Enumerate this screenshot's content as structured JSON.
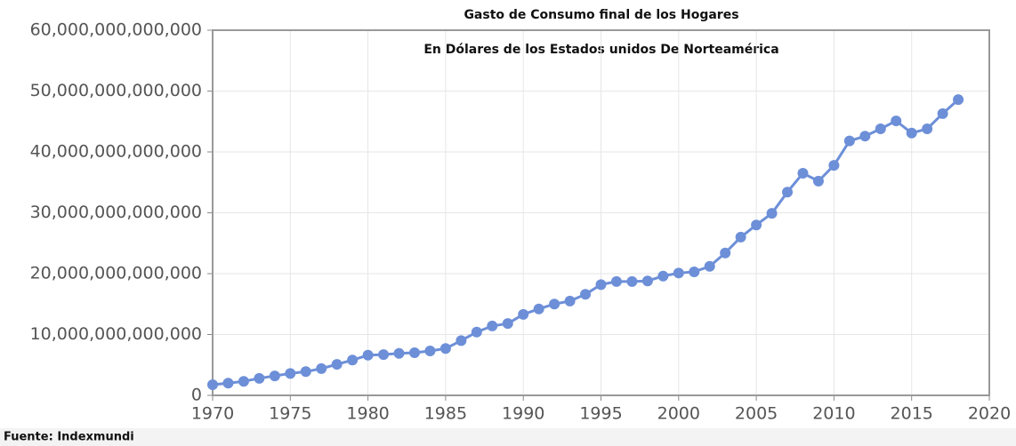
{
  "chart_data": {
    "type": "line",
    "title": "Gasto de Consumo final de los Hogares",
    "subtitle": "En Dólares de los Estados unidos De Norteamérica",
    "source": "Fuente: Indexmundi",
    "x": [
      1970,
      1971,
      1972,
      1973,
      1974,
      1975,
      1976,
      1977,
      1978,
      1979,
      1980,
      1981,
      1982,
      1983,
      1984,
      1985,
      1986,
      1987,
      1988,
      1989,
      1990,
      1991,
      1992,
      1993,
      1994,
      1995,
      1996,
      1997,
      1998,
      1999,
      2000,
      2001,
      2002,
      2003,
      2004,
      2005,
      2006,
      2007,
      2008,
      2009,
      2010,
      2011,
      2012,
      2013,
      2014,
      2015,
      2016,
      2017,
      2018
    ],
    "series": [
      {
        "color": "#6d8fd8",
        "values": [
          1750000000000,
          2000000000000,
          2300000000000,
          2800000000000,
          3200000000000,
          3600000000000,
          3900000000000,
          4400000000000,
          5100000000000,
          5800000000000,
          6600000000000,
          6700000000000,
          6900000000000,
          7000000000000,
          7300000000000,
          7700000000000,
          9000000000000,
          10400000000000,
          11400000000000,
          11800000000000,
          13300000000000,
          14200000000000,
          15000000000000,
          15500000000000,
          16600000000000,
          18200000000000,
          18700000000000,
          18700000000000,
          18800000000000,
          19600000000000,
          20100000000000,
          20300000000000,
          21200000000000,
          23400000000000,
          26000000000000,
          28000000000000,
          29900000000000,
          33400000000000,
          36500000000000,
          35200000000000,
          37800000000000,
          41800000000000,
          42600000000000,
          43800000000000,
          45100000000000,
          43100000000000,
          43800000000000,
          46300000000000,
          48600000000000
        ]
      }
    ],
    "xlim": [
      1970,
      2020
    ],
    "xticks": [
      1970,
      1975,
      1980,
      1985,
      1990,
      1995,
      2000,
      2005,
      2010,
      2015,
      2020
    ],
    "ylim": [
      0,
      60000000000000
    ],
    "yticks": [
      0,
      {
        "value": 10000000000000,
        "label": "10,000,000,000,000"
      },
      {
        "value": 20000000000000,
        "label": "20,000,000,000,000"
      },
      {
        "value": 30000000000000,
        "label": "30,000,000,000,000"
      },
      {
        "value": 40000000000000,
        "label": "40,000,000,000,000"
      },
      {
        "value": 50000000000000,
        "label": "50,000,000,000,000"
      },
      {
        "value": 60000000000000,
        "label": "60,000,000,000,000"
      }
    ],
    "grid": true
  }
}
